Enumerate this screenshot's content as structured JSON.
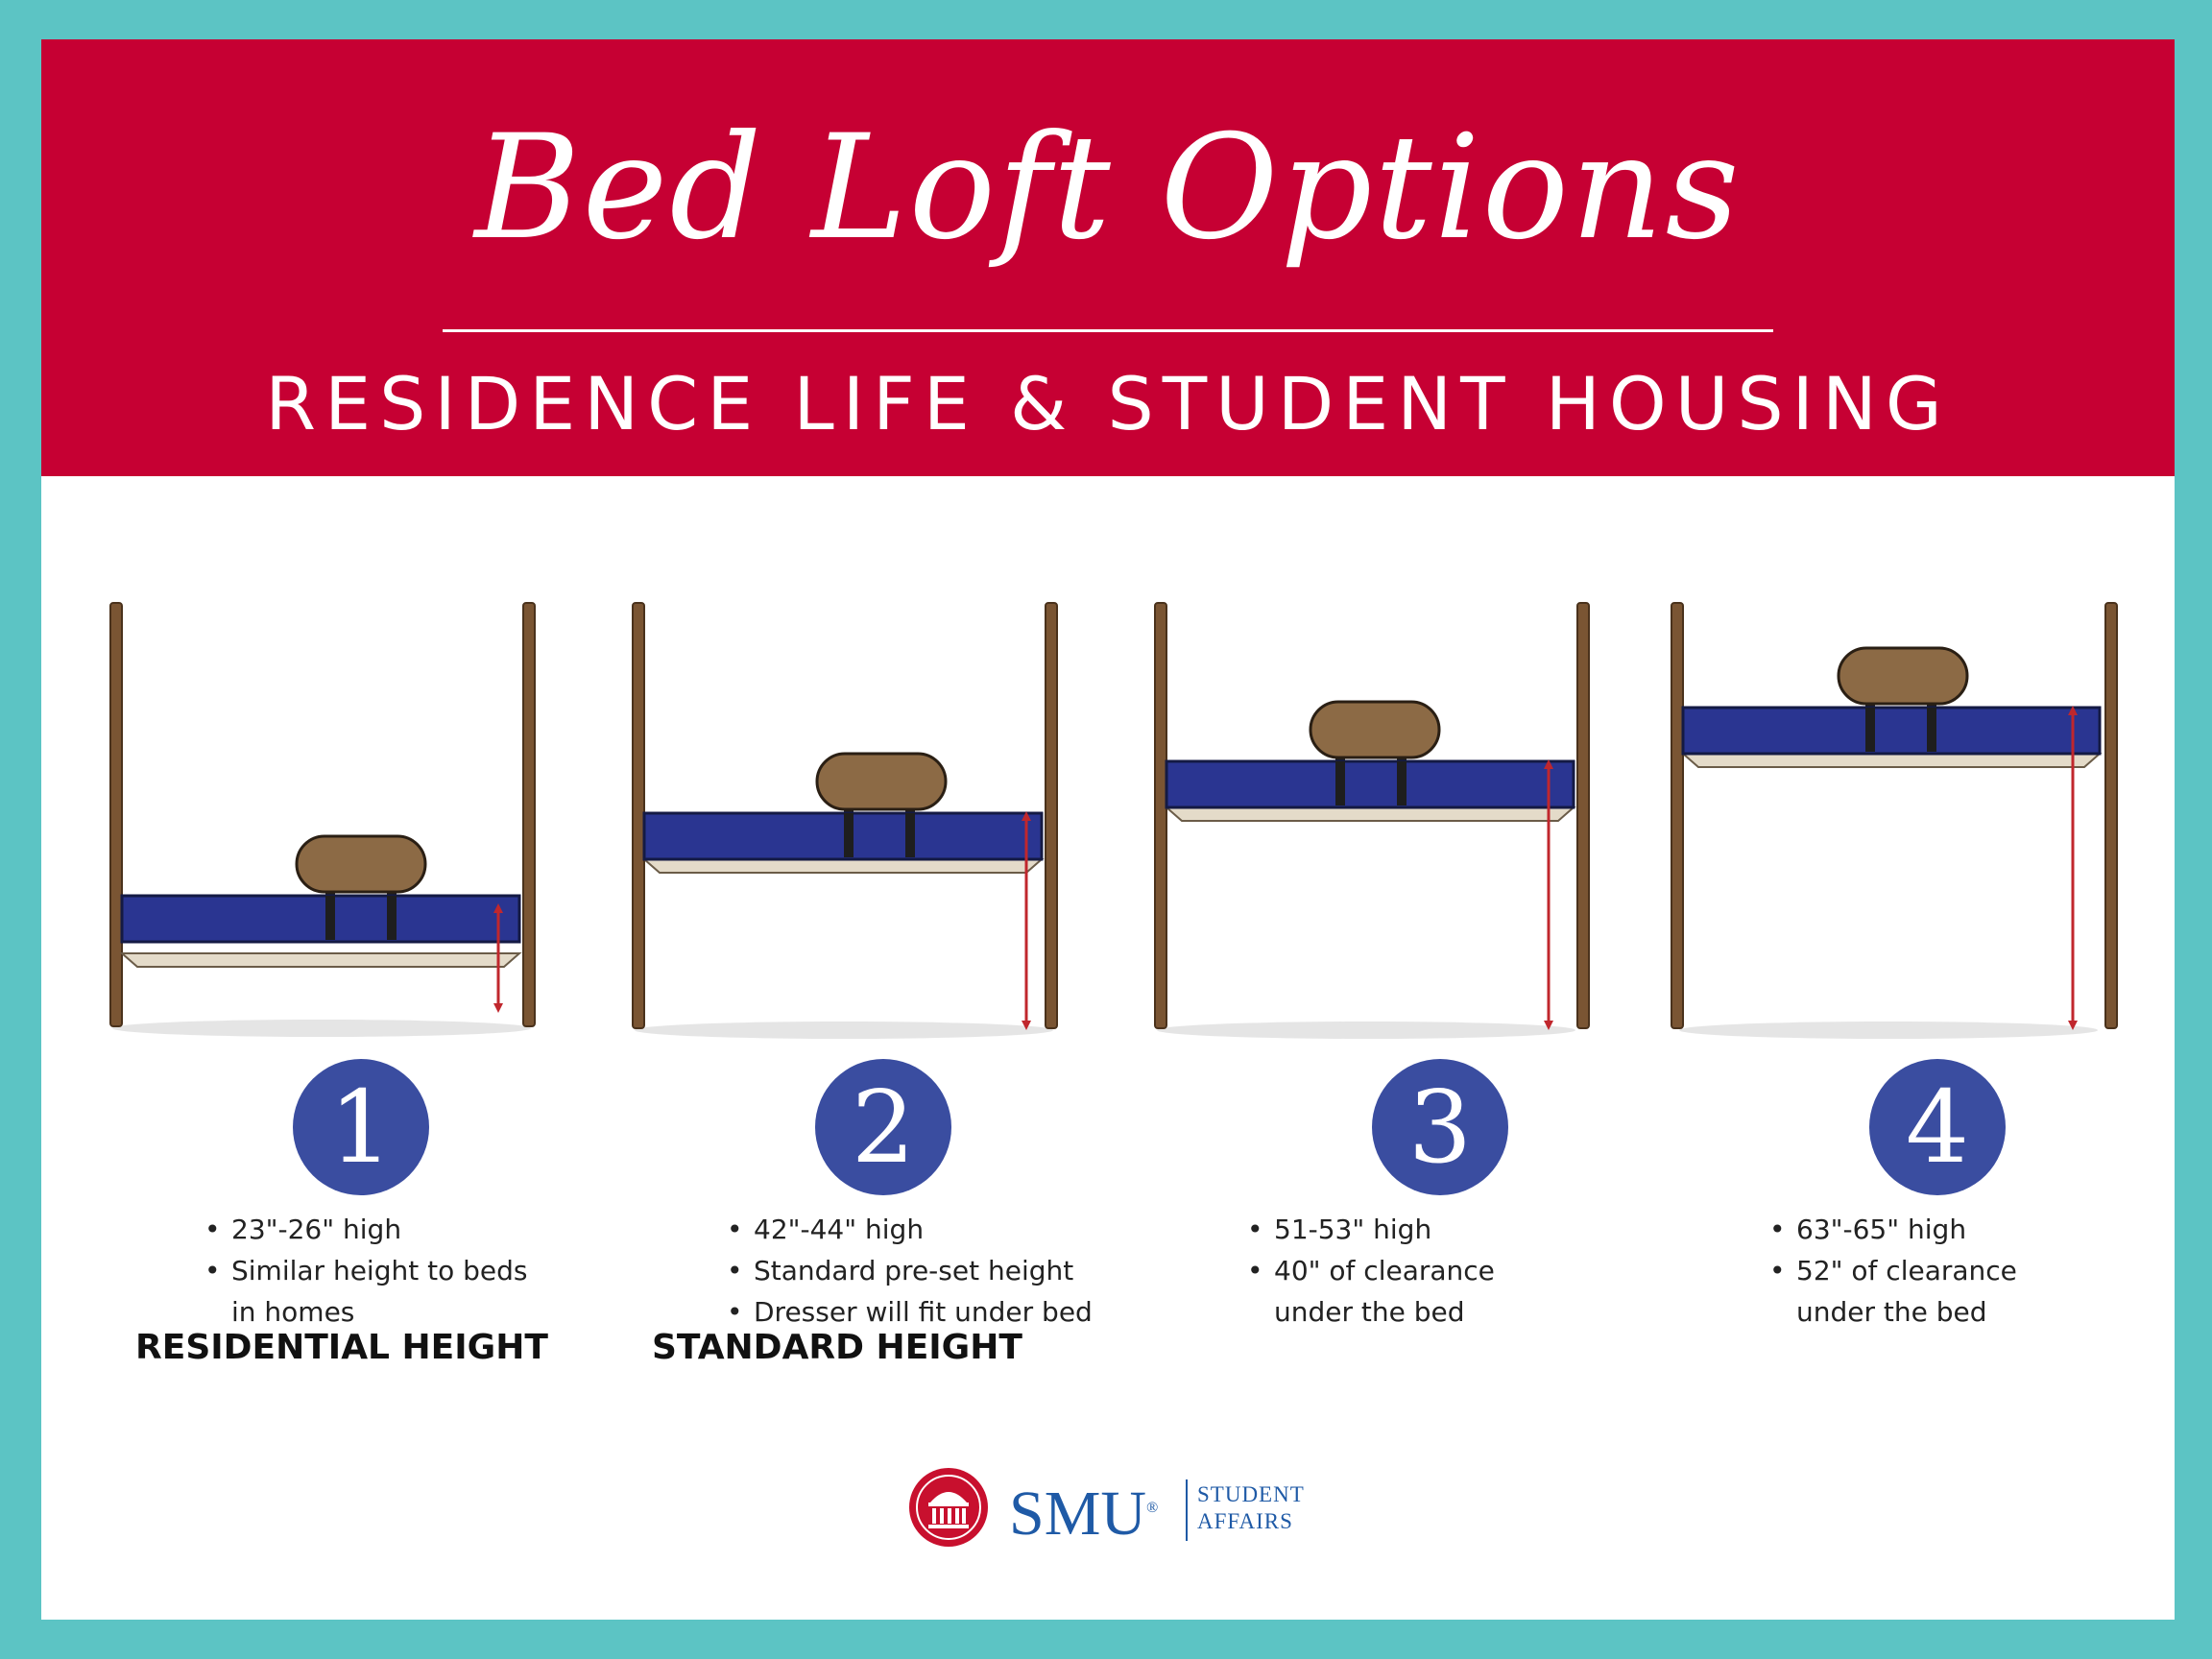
{
  "colors": {
    "border": "#5cc4c4",
    "banner": "#c60033",
    "badge": "#3a4da0",
    "mattress": "#2a3591",
    "wood": "#7a5533",
    "arrow": "#c0272d"
  },
  "header": {
    "title": "Bed Loft Options",
    "subtitle": "RESIDENCE LIFE & STUDENT HOUSING"
  },
  "options": [
    {
      "number": "1",
      "bullets": [
        "23\"-26\" high",
        "Similar height to beds",
        "in homes"
      ],
      "label": "RESIDENTIAL HEIGHT"
    },
    {
      "number": "2",
      "bullets": [
        "42\"-44\" high",
        "Standard pre-set height",
        "Dresser will fit under bed"
      ],
      "label": "STANDARD HEIGHT"
    },
    {
      "number": "3",
      "bullets": [
        "51-53\" high",
        "40\" of clearance",
        "under the bed"
      ],
      "label": ""
    },
    {
      "number": "4",
      "bullets": [
        "63\"-65\" high",
        "52\" of clearance",
        "under the bed"
      ],
      "label": ""
    }
  ],
  "logo": {
    "brand": "SMU",
    "registered": "®",
    "division_line1": "STUDENT",
    "division_line2": "AFFAIRS"
  }
}
